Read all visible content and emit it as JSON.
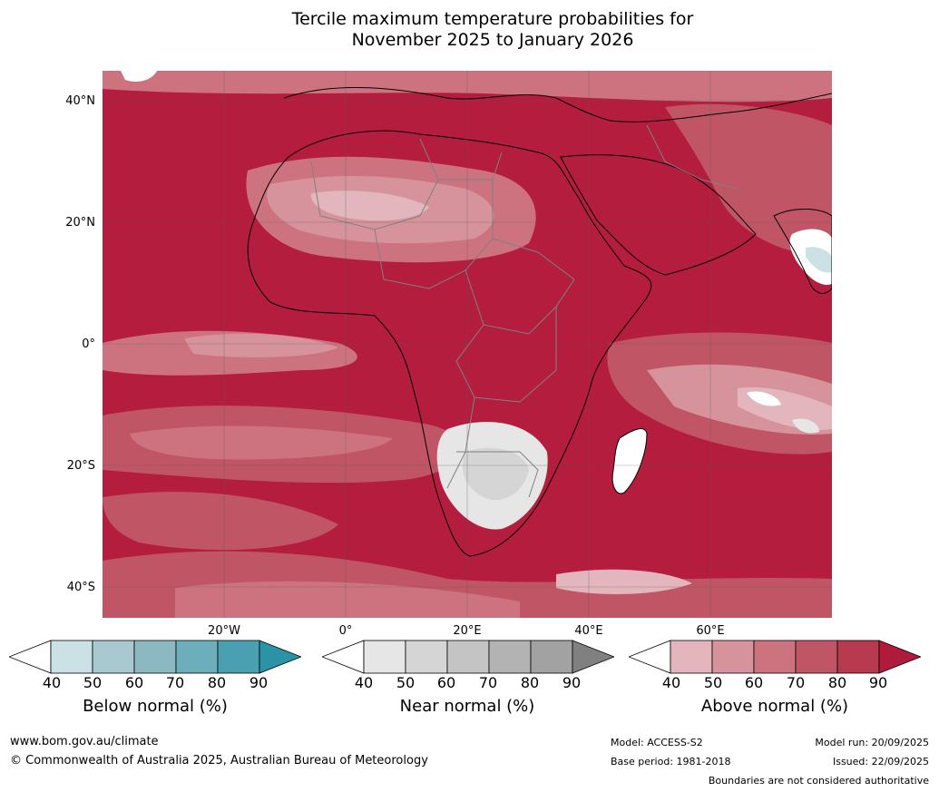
{
  "title": {
    "line1": "Tercile maximum temperature probabilities for",
    "line2": "November 2025 to January 2026"
  },
  "map": {
    "region": "Africa",
    "latitude_labels": [
      "40°N",
      "20°N",
      "0°",
      "20°S",
      "40°S"
    ],
    "longitude_labels": [
      "20°W",
      "0°",
      "20°E",
      "40°E",
      "60°E"
    ]
  },
  "colorbars": [
    {
      "label": "Below normal (%)",
      "ticks": [
        "40",
        "50",
        "60",
        "70",
        "80",
        "90"
      ],
      "colors": [
        "#ffffff",
        "#cae1e6",
        "#a8c9cf",
        "#8cb8c2",
        "#6daebb",
        "#4aa0b1",
        "#2b93a6"
      ]
    },
    {
      "label": "Near normal (%)",
      "ticks": [
        "40",
        "50",
        "60",
        "70",
        "80",
        "90"
      ],
      "colors": [
        "#ffffff",
        "#e6e6e6",
        "#d5d5d5",
        "#c4c4c4",
        "#b3b3b3",
        "#a2a2a2",
        "#808080"
      ]
    },
    {
      "label": "Above normal (%)",
      "ticks": [
        "40",
        "50",
        "60",
        "70",
        "80",
        "90"
      ],
      "colors": [
        "#ffffff",
        "#e2b6bc",
        "#d6939c",
        "#cd737f",
        "#c05565",
        "#b83a4e",
        "#b01b3c"
      ]
    }
  ],
  "footer": {
    "website": "www.bom.gov.au/climate",
    "copyright": "© Commonwealth of Australia 2025, Australian Bureau of Meteorology",
    "model": "Model: ACCESS-S2",
    "base_period": "Base period: 1981-2018",
    "model_run": "Model run: 20/09/2025",
    "issued": "Issued: 22/09/2025",
    "disclaimer": "Boundaries are not considered authoritative"
  }
}
